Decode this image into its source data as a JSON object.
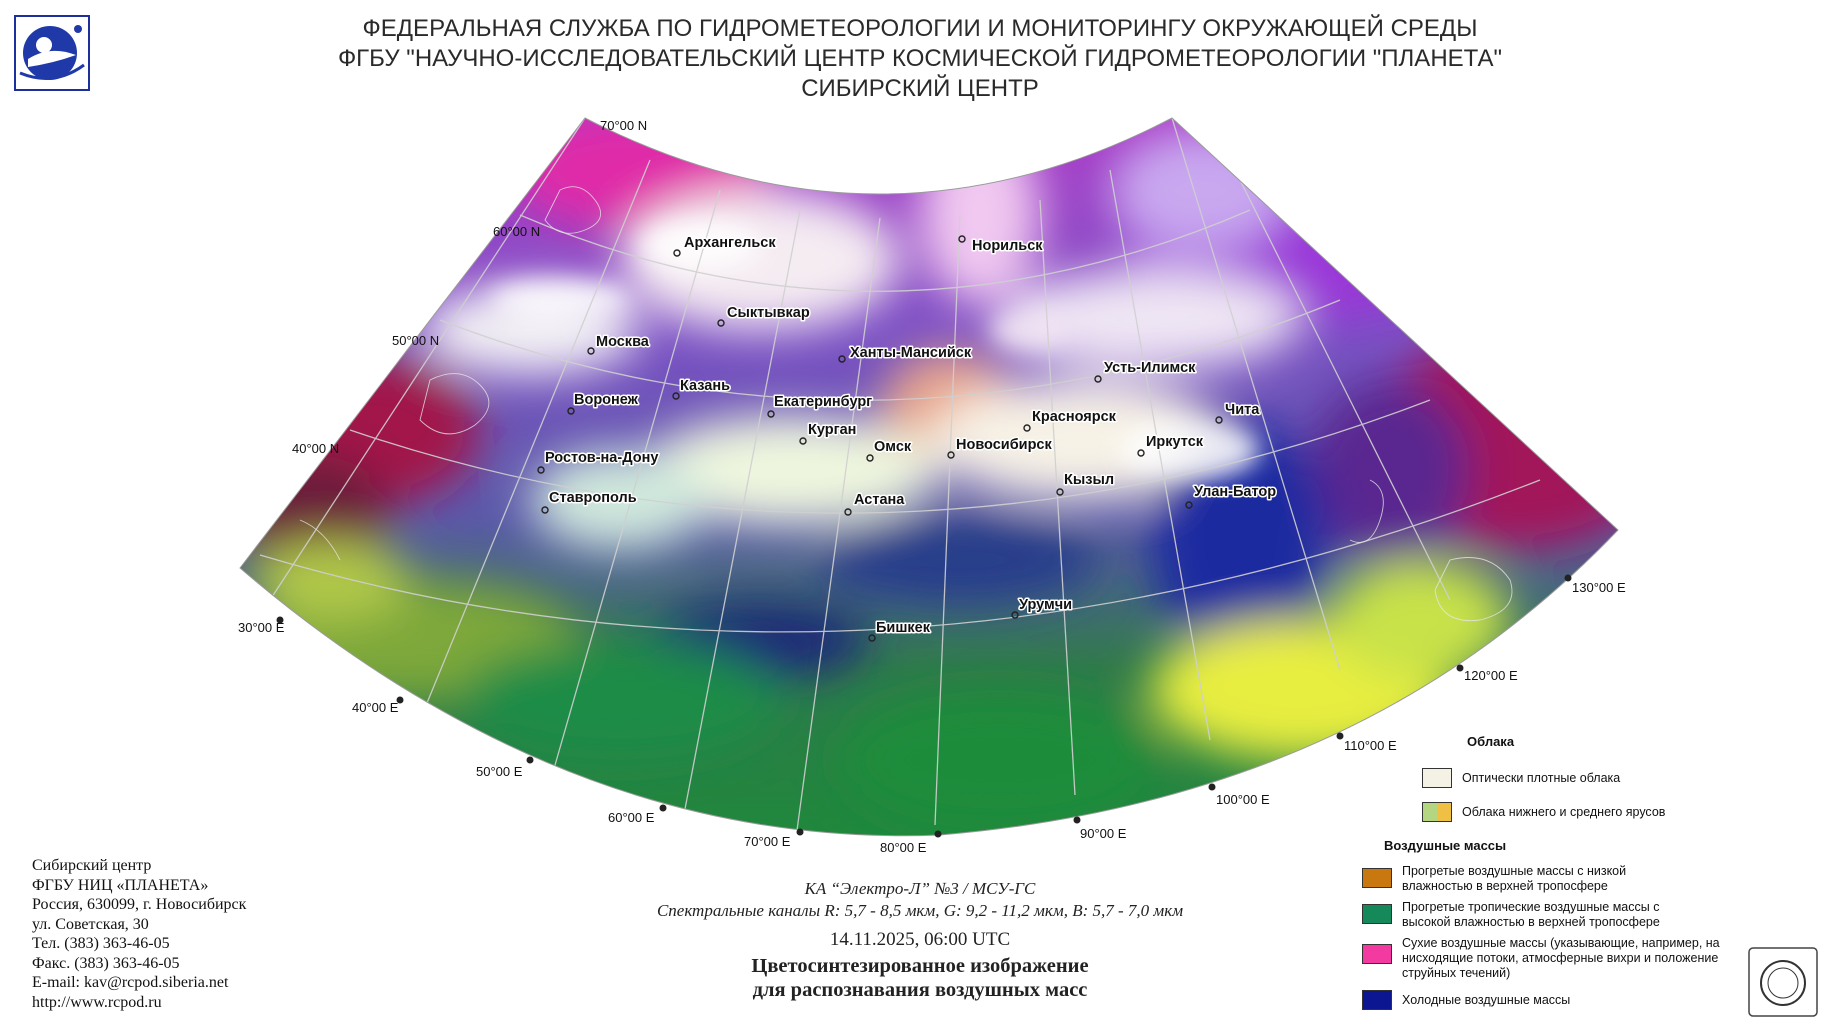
{
  "header": {
    "line1": "ФЕДЕРАЛЬНАЯ СЛУЖБА ПО ГИДРОМЕТЕОРОЛОГИИ И МОНИТОРИНГУ ОКРУЖАЮЩЕЙ СРЕДЫ",
    "line2": "ФГБУ \"НАУЧНО-ИССЛЕДОВАТЕЛЬСКИЙ ЦЕНТР КОСМИЧЕСКОЙ ГИДРОМЕТЕОРОЛОГИИ \"ПЛАНЕТА\"",
    "line3": "СИБИРСКИЙ ЦЕНТР"
  },
  "map": {
    "latitude_labels": [
      "70°00 N",
      "60°00 N",
      "50°00 N",
      "40°00 N"
    ],
    "longitude_labels": [
      "30°00 E",
      "40°00 E",
      "50°00 E",
      "60°00 E",
      "70°00 E",
      "80°00 E",
      "90°00 E",
      "100°00 E",
      "110°00 E",
      "120°00 E",
      "130°00 E"
    ],
    "cities": [
      "Архангельск",
      "Норильск",
      "Сыктывкар",
      "Москва",
      "Ханты-Мансийск",
      "Казань",
      "Воронеж",
      "Екатеринбург",
      "Усть-Илимск",
      "Красноярск",
      "Чита",
      "Курган",
      "Омск",
      "Новосибирск",
      "Иркутск",
      "Ростов-на-Дону",
      "Кызыл",
      "Улан-Батор",
      "Ставрополь",
      "Астана",
      "Урумчи",
      "Бишкек"
    ]
  },
  "legend": {
    "clouds_title": "Облака",
    "clouds": [
      {
        "label": "Оптически плотные облака",
        "color": "#f4f2e4"
      },
      {
        "label": "Облака нижнего и среднего ярусов",
        "colors": [
          "#b5d680",
          "#f0c044"
        ]
      }
    ],
    "airmass_title": "Воздушные массы",
    "airmasses": [
      {
        "label": "Прогретые воздушные массы с низкой влажностью в верхней тропосфере",
        "color": "#c8780e"
      },
      {
        "label": "Прогретые тропичеcкие воздушные массы с высокой влажностью в верхней тропосфере",
        "color": "#15895a"
      },
      {
        "label": "Сухие воздушные массы (указывающие, например, на нисходящие потоки, атмосферные вихри и положение струйных течений)",
        "color": "#f23aa0"
      },
      {
        "label": "Холодные воздушные массы",
        "color": "#0b1690"
      }
    ]
  },
  "contacts": [
    "Сибирский центр",
    "ФГБУ НИЦ «ПЛАНЕТА»",
    "Россия, 630099, г. Новосибирск",
    "ул. Советская, 30",
    "Тел. (383) 363-46-05",
    "Факс. (383) 363-46-05",
    "E-mail: kav@rcpod.siberia.net",
    "http://www.rcpod.ru"
  ],
  "caption": {
    "satellite": "КА “Электро-Л” №3 / МСУ-ГС",
    "channels": "Спектральные каналы R: 5,7 - 8,5 мкм, G: 9,2 - 11,2 мкм, B: 5,7 - 7,0 мкм",
    "datetime": "14.11.2025, 06:00 UTC",
    "title1": "Цветосинтезированное изображение",
    "title2": "для распознавания воздушных масс"
  }
}
